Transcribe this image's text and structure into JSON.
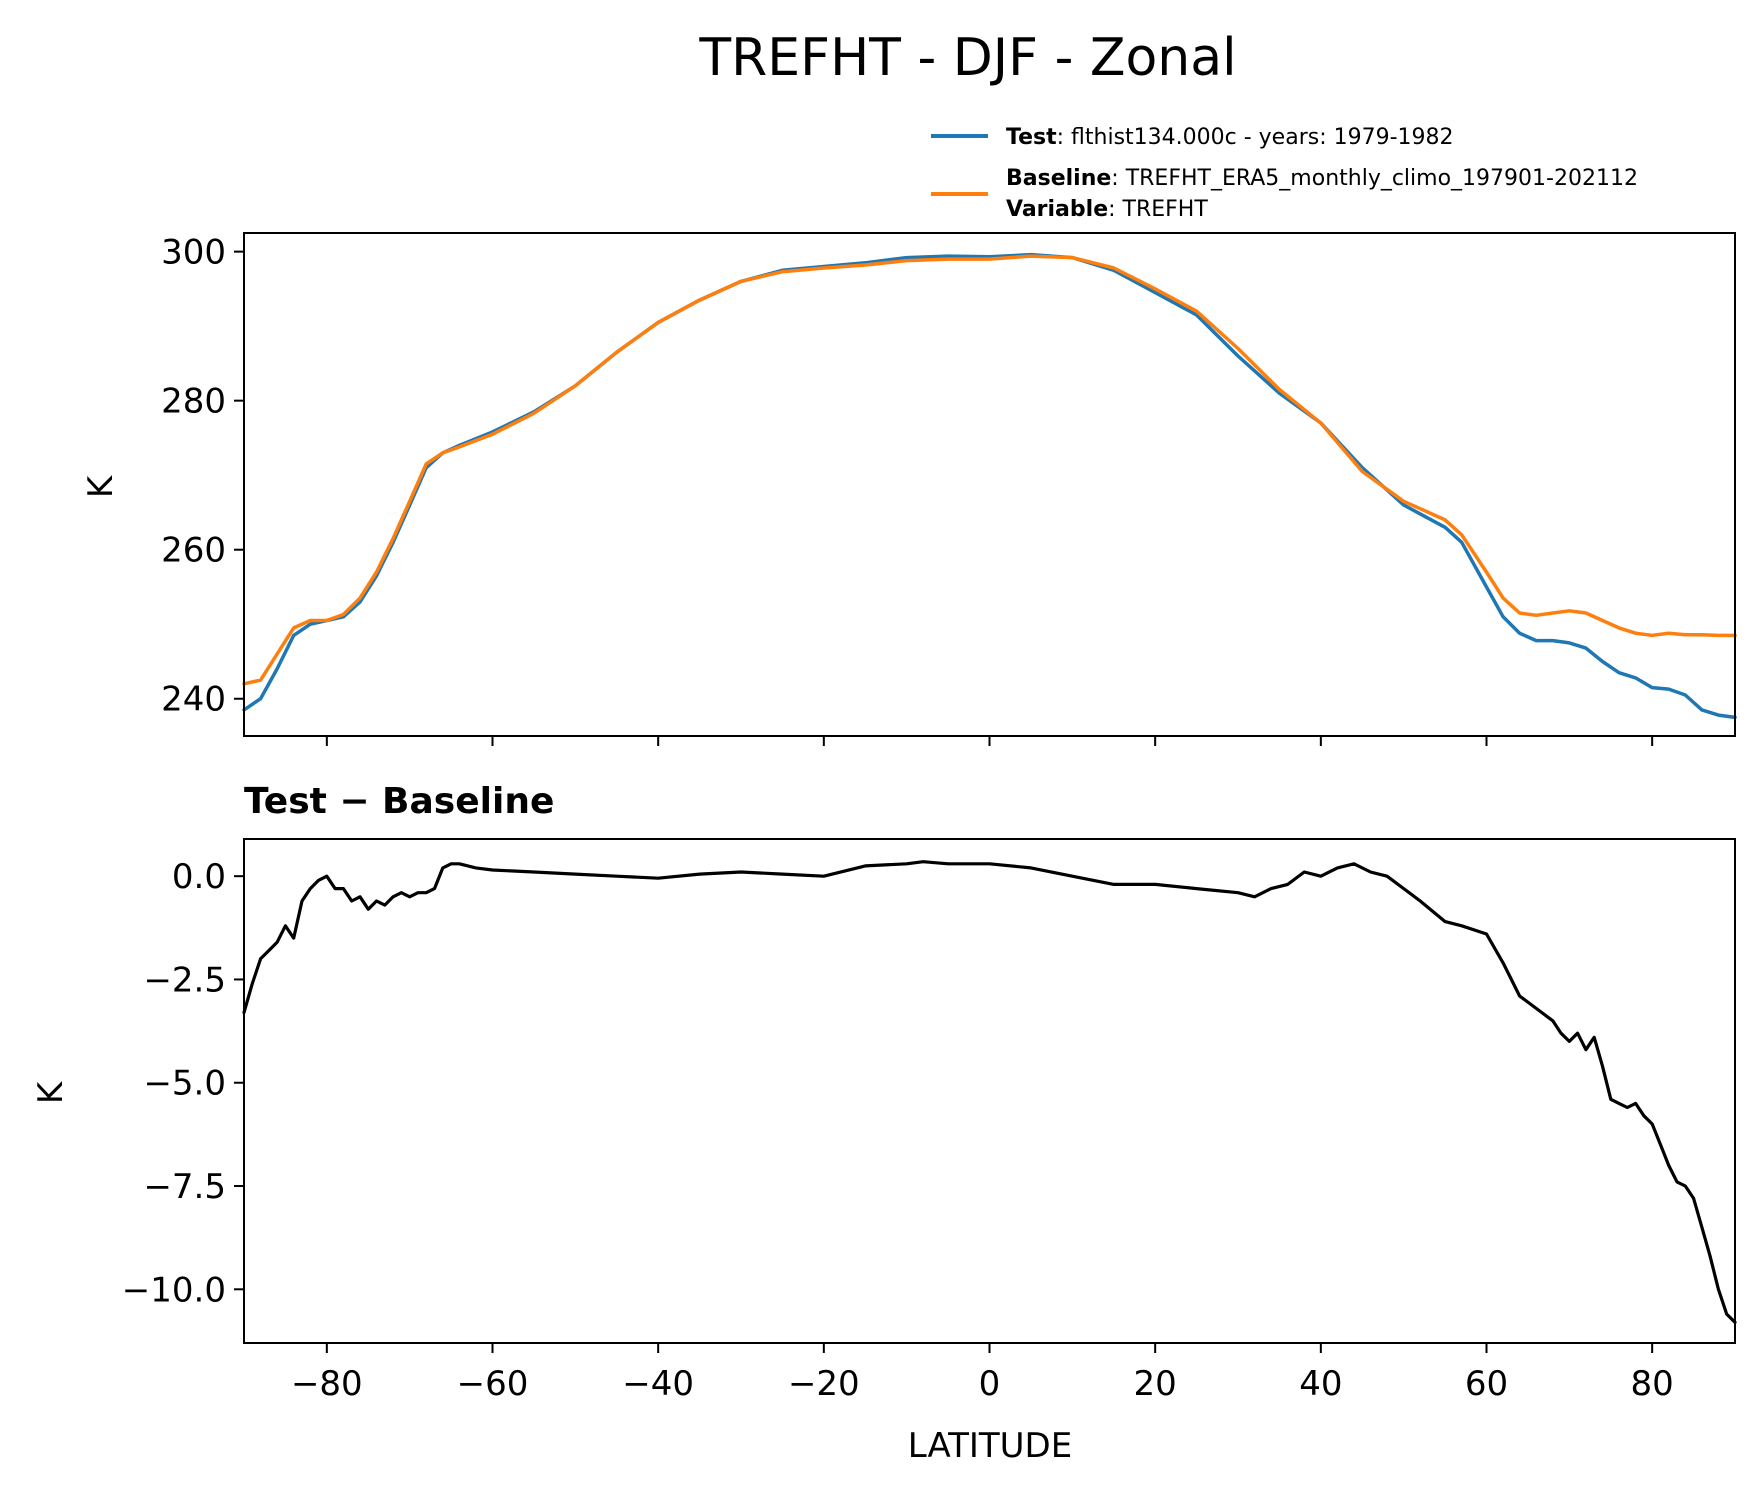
{
  "chart_data": [
    {
      "type": "line",
      "title": "TREFHT - DJF - Zonal",
      "xlabel": "",
      "ylabel": "K",
      "xlim": [
        -90,
        90
      ],
      "ylim": [
        235,
        302.5
      ],
      "xticks": [
        -80,
        -60,
        -40,
        -20,
        0,
        20,
        40,
        60,
        80
      ],
      "yticks": [
        240,
        260,
        280,
        300
      ],
      "grid": false,
      "legend": {
        "position": "top-right, above plot",
        "entries": [
          {
            "label_bold": "Test",
            "label_text": ": flthist134.000c - years: 1979-1982",
            "color": "#1f77b4"
          },
          {
            "label_bold": "Baseline",
            "label_text": ": TREFHT_ERA5_monthly_climo_197901-202112",
            "color": "#ff7f0e"
          },
          {
            "label_bold": "Variable",
            "label_text": ": TREFHT",
            "color": ""
          }
        ]
      },
      "series": [
        {
          "name": "Test",
          "color": "#1f77b4",
          "x": [
            -90,
            -88,
            -86,
            -84,
            -82,
            -80,
            -78,
            -76,
            -74,
            -72,
            -70,
            -68,
            -66,
            -64,
            -60,
            -55,
            -50,
            -45,
            -40,
            -35,
            -30,
            -25,
            -20,
            -15,
            -10,
            -5,
            0,
            5,
            10,
            15,
            20,
            25,
            30,
            35,
            40,
            45,
            50,
            52,
            55,
            57,
            60,
            62,
            64,
            66,
            68,
            70,
            72,
            74,
            76,
            78,
            80,
            82,
            84,
            86,
            88,
            90
          ],
          "y": [
            238.5,
            240.0,
            244.0,
            248.5,
            250.0,
            250.5,
            251.0,
            253.0,
            256.5,
            261.0,
            266.0,
            271.0,
            273.0,
            274.0,
            275.8,
            278.5,
            282.0,
            286.5,
            290.5,
            293.5,
            296.0,
            297.5,
            298.0,
            298.5,
            299.2,
            299.4,
            299.3,
            299.6,
            299.2,
            297.5,
            294.5,
            291.5,
            286.0,
            281.0,
            277.0,
            271.0,
            266.0,
            264.8,
            263.0,
            261.0,
            255.0,
            251.0,
            248.8,
            247.8,
            247.8,
            247.5,
            246.8,
            245.0,
            243.5,
            242.8,
            241.5,
            241.3,
            240.5,
            238.5,
            237.8,
            237.5
          ]
        },
        {
          "name": "Baseline",
          "color": "#ff7f0e",
          "x": [
            -90,
            -88,
            -86,
            -84,
            -82,
            -80,
            -78,
            -76,
            -74,
            -72,
            -70,
            -68,
            -66,
            -64,
            -60,
            -55,
            -50,
            -45,
            -40,
            -35,
            -30,
            -25,
            -20,
            -15,
            -10,
            -5,
            0,
            5,
            10,
            15,
            20,
            25,
            30,
            35,
            40,
            45,
            50,
            52,
            55,
            57,
            60,
            62,
            64,
            66,
            68,
            70,
            72,
            74,
            76,
            78,
            80,
            82,
            84,
            86,
            88,
            90
          ],
          "y": [
            242.0,
            242.5,
            246.0,
            249.5,
            250.5,
            250.5,
            251.3,
            253.5,
            257.0,
            261.5,
            266.5,
            271.5,
            273.0,
            273.8,
            275.5,
            278.3,
            282.0,
            286.5,
            290.5,
            293.5,
            296.0,
            297.3,
            297.8,
            298.2,
            298.8,
            299.0,
            299.0,
            299.4,
            299.2,
            297.8,
            295.0,
            292.0,
            287.0,
            281.5,
            277.0,
            270.5,
            266.5,
            265.5,
            264.0,
            262.0,
            257.0,
            253.5,
            251.5,
            251.2,
            251.5,
            251.8,
            251.5,
            250.5,
            249.5,
            248.8,
            248.5,
            248.8,
            248.6,
            248.6,
            248.5,
            248.5
          ]
        }
      ]
    },
    {
      "type": "line",
      "title": "Test − Baseline",
      "xlabel": "LATITUDE",
      "ylabel": "K",
      "xlim": [
        -90,
        90
      ],
      "ylim": [
        -11.3,
        0.9
      ],
      "xticks": [
        -80,
        -60,
        -40,
        -20,
        0,
        20,
        40,
        60,
        80
      ],
      "yticks": [
        0.0,
        -2.5,
        -5.0,
        -7.5,
        -10.0
      ],
      "grid": false,
      "series": [
        {
          "color": "#000000",
          "x": [
            -90,
            -89,
            -88,
            -87,
            -86,
            -85,
            -84,
            -83,
            -82,
            -81,
            -80,
            -79,
            -78,
            -77,
            -76,
            -75,
            -74,
            -73,
            -72,
            -71,
            -70,
            -69,
            -68,
            -67,
            -66,
            -65,
            -64,
            -62,
            -60,
            -55,
            -50,
            -45,
            -40,
            -35,
            -30,
            -25,
            -20,
            -15,
            -10,
            -8,
            -5,
            0,
            5,
            10,
            15,
            20,
            25,
            30,
            32,
            34,
            36,
            38,
            40,
            42,
            44,
            46,
            48,
            50,
            52,
            55,
            57,
            60,
            62,
            64,
            66,
            68,
            69,
            70,
            71,
            72,
            73,
            74,
            75,
            76,
            77,
            78,
            79,
            80,
            81,
            82,
            83,
            84,
            85,
            86,
            87,
            88,
            89,
            90
          ],
          "y": [
            -3.3,
            -2.6,
            -2.0,
            -1.8,
            -1.6,
            -1.2,
            -1.5,
            -0.6,
            -0.3,
            -0.1,
            0.0,
            -0.3,
            -0.3,
            -0.6,
            -0.5,
            -0.8,
            -0.6,
            -0.7,
            -0.5,
            -0.4,
            -0.5,
            -0.4,
            -0.4,
            -0.3,
            0.2,
            0.3,
            0.3,
            0.2,
            0.15,
            0.1,
            0.05,
            0.0,
            -0.05,
            0.05,
            0.1,
            0.05,
            0.0,
            0.25,
            0.3,
            0.35,
            0.3,
            0.3,
            0.2,
            0.0,
            -0.2,
            -0.2,
            -0.3,
            -0.4,
            -0.5,
            -0.3,
            -0.2,
            0.1,
            0.0,
            0.2,
            0.3,
            0.1,
            0.0,
            -0.3,
            -0.6,
            -1.1,
            -1.2,
            -1.4,
            -2.1,
            -2.9,
            -3.2,
            -3.5,
            -3.8,
            -4.0,
            -3.8,
            -4.2,
            -3.9,
            -4.6,
            -5.4,
            -5.5,
            -5.6,
            -5.5,
            -5.8,
            -6.0,
            -6.5,
            -7.0,
            -7.4,
            -7.5,
            -7.8,
            -8.5,
            -9.2,
            -10.0,
            -10.6,
            -10.8
          ]
        }
      ]
    }
  ]
}
